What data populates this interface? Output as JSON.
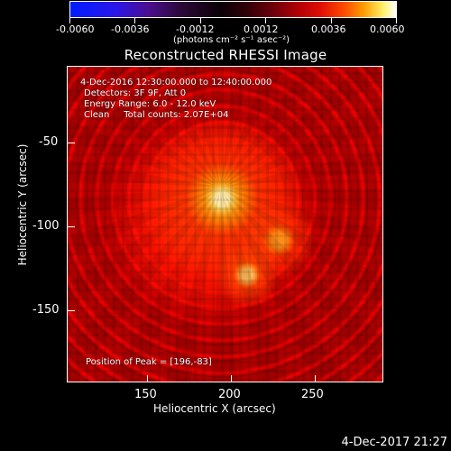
{
  "colorbar": {
    "tick_labels": [
      "-0.0060",
      "-0.0036",
      "-0.0012",
      "0.0012",
      "0.0036",
      "0.0060"
    ],
    "units": "(photons cm⁻² s⁻¹ asec⁻²)"
  },
  "plot": {
    "title": "Reconstructed RHESSI Image",
    "line1": "4-Dec-2016 12:30:00.000 to 12:40:00.000",
    "line2": "Detectors: 3F 9F, Att 0",
    "line3": "Energy Range: 6.0 - 12.0 keV",
    "line4": "Clean     Total counts: 2.07E+04",
    "peak": "Position of Peak = [196,-83]"
  },
  "axes": {
    "x_title": "Heliocentric X (arcsec)",
    "y_title": "Heliocentric Y (arcsec)",
    "x_ticks": [
      "150",
      "200",
      "250"
    ],
    "y_ticks": [
      "-50",
      "-100",
      "-150"
    ]
  },
  "footer": {
    "timestamp": "4-Dec-2017 21:27"
  }
}
